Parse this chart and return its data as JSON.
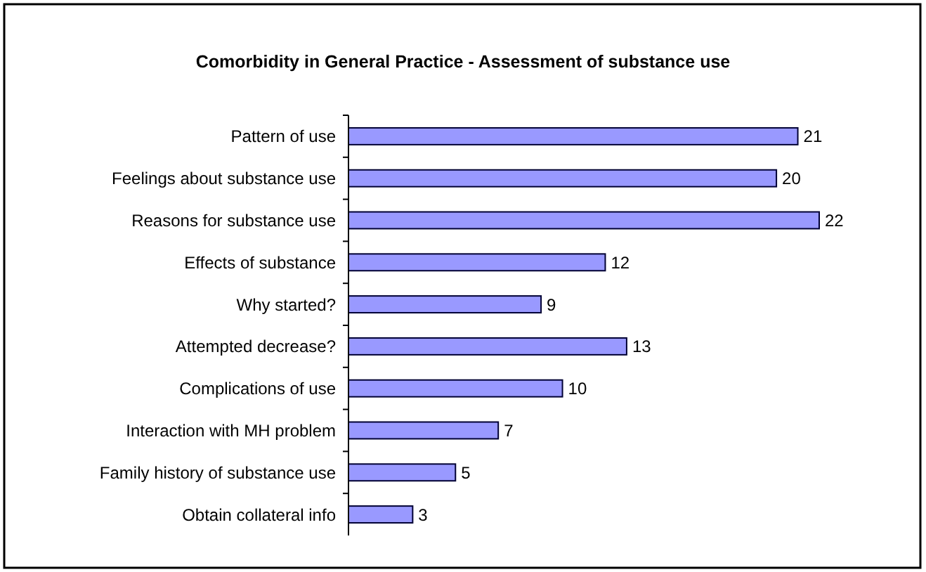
{
  "chart_data": {
    "type": "bar",
    "orientation": "horizontal",
    "title": "Comorbidity in General Practice - Assessment of substance use",
    "categories": [
      "Pattern of use",
      "Feelings about substance use",
      "Reasons for substance use",
      "Effects of substance",
      "Why started?",
      "Attempted decrease?",
      "Complications of use",
      "Interaction with MH problem",
      "Family history of substance use",
      "Obtain collateral info"
    ],
    "values": [
      21,
      20,
      22,
      12,
      9,
      13,
      10,
      7,
      5,
      3
    ],
    "color": "#9999ff",
    "data_labels": true
  }
}
